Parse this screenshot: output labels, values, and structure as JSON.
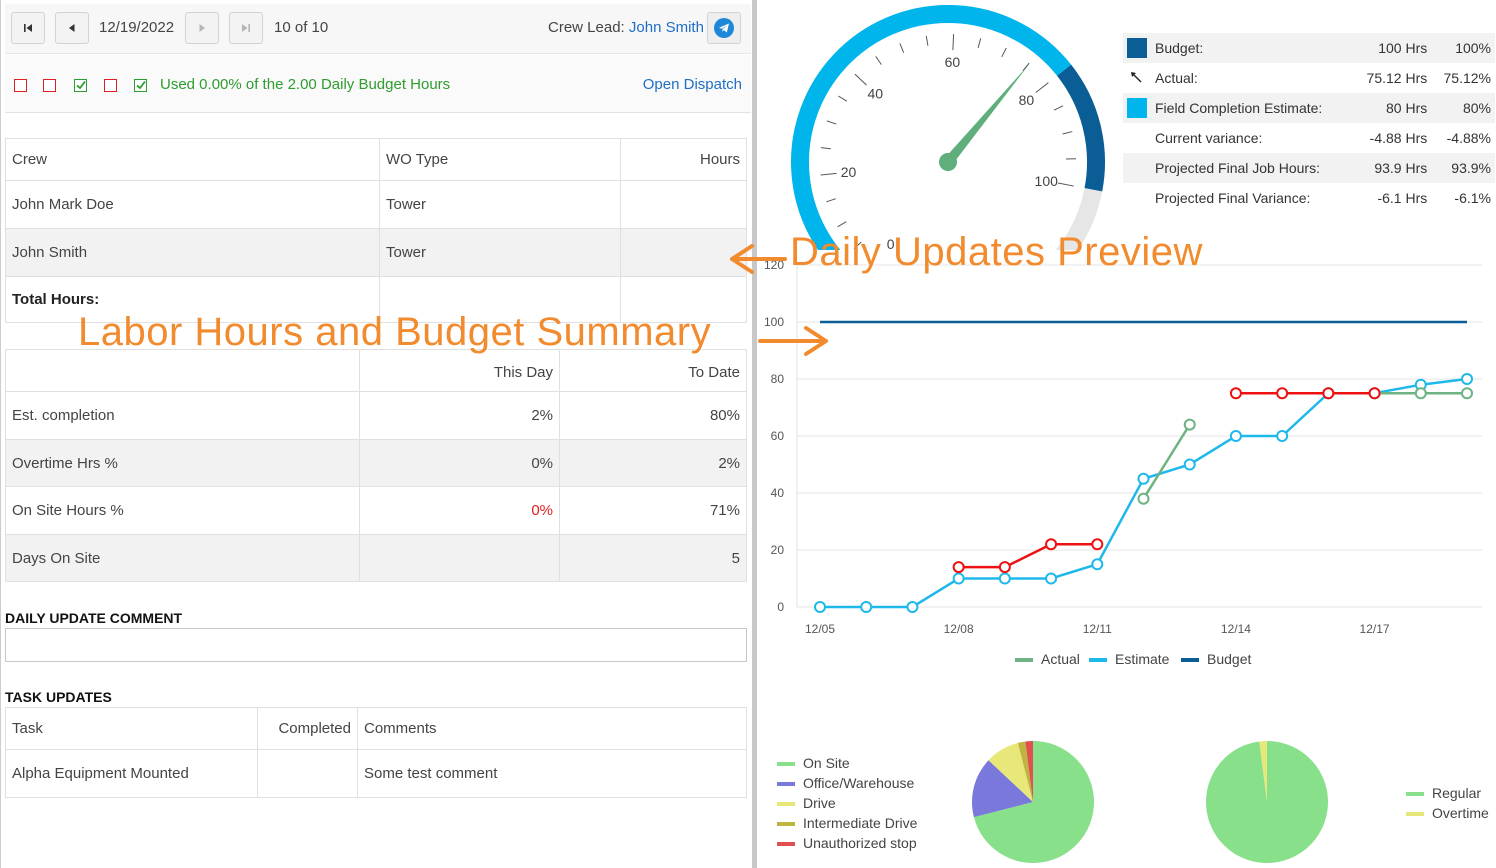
{
  "toolbar": {
    "date": "12/19/2022",
    "counter": "10 of 10",
    "crew_lead_label": "Crew Lead:",
    "crew_lead_name": "John Smith"
  },
  "checks": [
    {
      "state": "unchecked",
      "color": "#e02020"
    },
    {
      "state": "unchecked",
      "color": "#e02020"
    },
    {
      "state": "checked",
      "color": "#2e9c2e"
    },
    {
      "state": "unchecked",
      "color": "#e02020"
    },
    {
      "state": "checked",
      "color": "#2e9c2e"
    }
  ],
  "budget_text": "Used 0.00% of the 2.00 Daily Budget Hours",
  "open_dispatch": "Open Dispatch",
  "crew_table": {
    "headers": [
      "Crew",
      "WO Type",
      "Hours"
    ],
    "rows": [
      [
        "John Mark Doe",
        "Tower",
        ""
      ],
      [
        "John Smith",
        "Tower",
        ""
      ]
    ],
    "total_label": "Total Hours:"
  },
  "summary_table": {
    "headers": [
      "",
      "This Day",
      "To Date"
    ],
    "rows": [
      [
        "Est. completion",
        "2%",
        "80%"
      ],
      [
        "Overtime Hrs %",
        "0%",
        "2%"
      ],
      [
        "On Site Hours %",
        "0%",
        "71%"
      ],
      [
        "Days On Site",
        "",
        "5"
      ]
    ]
  },
  "daily_comment_title": "DAILY UPDATE COMMENT",
  "task_updates": {
    "title": "TASK UPDATES",
    "headers": [
      "Task",
      "Completed",
      "Comments"
    ],
    "rows": [
      [
        "Alpha Equipment Mounted",
        "",
        "Some test comment"
      ]
    ]
  },
  "annotations": {
    "left": "Labor  Hours and Budget Summary",
    "right": "Daily Updates Preview"
  },
  "gauge": {
    "value": 75.12,
    "max": 120,
    "tick_labels": [
      "0",
      "20",
      "40",
      "60",
      "80",
      "100"
    ]
  },
  "metrics": [
    {
      "label": "Budget:",
      "hrs": "100 Hrs",
      "pct": "100%",
      "marker": "swatch",
      "color": "#0b5e95"
    },
    {
      "label": "Actual:",
      "hrs": "75.12 Hrs",
      "pct": "75.12%",
      "marker": "arrow-icon"
    },
    {
      "label": "Field Completion Estimate:",
      "hrs": "80 Hrs",
      "pct": "80%",
      "marker": "swatch",
      "color": "#00b4ec"
    },
    {
      "label": "Current variance:",
      "hrs": "-4.88 Hrs",
      "pct": "-4.88%",
      "marker": ""
    },
    {
      "label": "Projected Final Job Hours:",
      "hrs": "93.9 Hrs",
      "pct": "93.9%",
      "marker": ""
    },
    {
      "label": "Projected Final Variance:",
      "hrs": "-6.1 Hrs",
      "pct": "-6.1%",
      "marker": ""
    }
  ],
  "chart_data": [
    {
      "type": "line",
      "x": [
        "12/05",
        "12/06",
        "12/07",
        "12/08",
        "12/09",
        "12/10",
        "12/11",
        "12/12",
        "12/13",
        "12/14",
        "12/15",
        "12/16",
        "12/17",
        "12/18",
        "12/19"
      ],
      "x_tick_labels": [
        "12/05",
        "12/08",
        "12/11",
        "12/14",
        "12/17"
      ],
      "ylim": [
        0,
        120
      ],
      "y_ticks": [
        0,
        20,
        40,
        60,
        80,
        100,
        120
      ],
      "grid": true,
      "legend": "bottom",
      "series": [
        {
          "name": "Actual",
          "color": "#6db383",
          "values": [
            null,
            null,
            null,
            null,
            null,
            null,
            null,
            38,
            64,
            null,
            null,
            75,
            75,
            75,
            75
          ]
        },
        {
          "name": "Estimate",
          "color": "#1fb8ea",
          "values": [
            0,
            0,
            0,
            10,
            10,
            10,
            15,
            45,
            50,
            60,
            60,
            75,
            75,
            78,
            80
          ]
        },
        {
          "name": "Budget",
          "color": "#0b5e95",
          "values": [
            100,
            100,
            100,
            100,
            100,
            100,
            100,
            100,
            100,
            100,
            100,
            100,
            100,
            100,
            100
          ]
        },
        {
          "name": "",
          "color": "#ee1111",
          "values": [
            null,
            null,
            null,
            14,
            14,
            22,
            22,
            null,
            null,
            75,
            75,
            75,
            75,
            null,
            null
          ]
        }
      ]
    },
    {
      "type": "pie",
      "labels": [
        "On Site",
        "Office/Warehouse",
        "Drive",
        "Intermediate Drive",
        "Unauthorized stop"
      ],
      "values": [
        71,
        16,
        9,
        2,
        2
      ],
      "colors": [
        "#88e08a",
        "#7b78dc",
        "#e8e87a",
        "#c0b440",
        "#e05050"
      ],
      "legend": "left"
    },
    {
      "type": "pie",
      "labels": [
        "Regular",
        "Overtime"
      ],
      "values": [
        98,
        2
      ],
      "colors": [
        "#88e08a",
        "#e8e87a"
      ],
      "legend": "right"
    }
  ]
}
